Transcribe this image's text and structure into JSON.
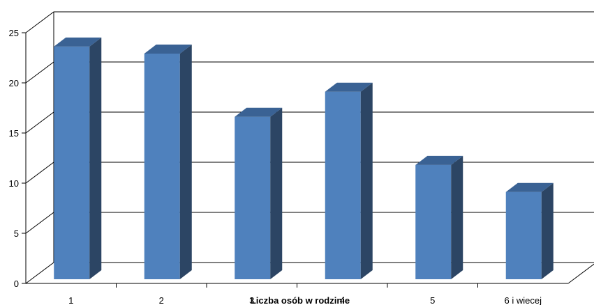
{
  "chart_data": {
    "type": "bar",
    "style": "3d-column",
    "categories": [
      "1",
      "2",
      "3",
      "4",
      "5",
      "6 i wiecej"
    ],
    "values": [
      23.2,
      22.5,
      16.2,
      18.7,
      11.4,
      8.7
    ],
    "xlabel": "Liczba osób w rodzinie",
    "ylabel": "",
    "ylim": [
      0,
      25
    ],
    "yticks": [
      0,
      5,
      10,
      15,
      20,
      25
    ],
    "grid": true,
    "legend": "none",
    "colors": {
      "bar_front": "#4f81bd",
      "bar_side": "#2c4564",
      "bar_top": "#3a6294",
      "gridline": "#000000",
      "background": "#ffffff"
    }
  }
}
